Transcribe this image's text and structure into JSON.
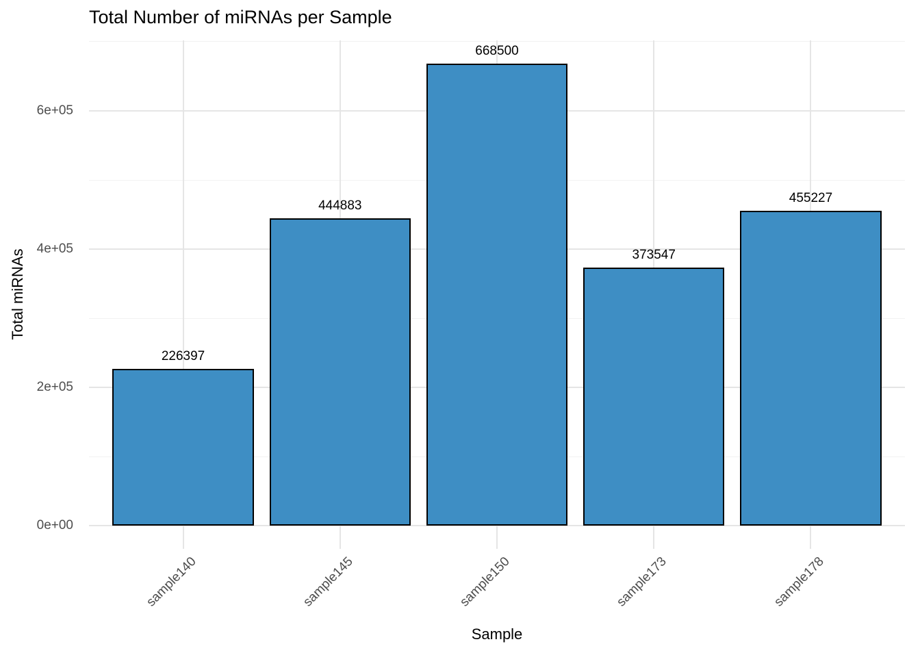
{
  "chart_data": {
    "type": "bar",
    "title": "Total Number of miRNAs per Sample",
    "xlabel": "Sample",
    "ylabel": "Total miRNAs",
    "categories": [
      "sample140",
      "sample145",
      "sample150",
      "sample173",
      "sample178"
    ],
    "values": [
      226397,
      444883,
      668500,
      373547,
      455227
    ],
    "bar_value_labels": [
      "226397",
      "444883",
      "668500",
      "373547",
      "455227"
    ],
    "y_tick_values": [
      0,
      200000,
      400000,
      600000
    ],
    "y_tick_labels": [
      "0e+00",
      "2e+05",
      "4e+05",
      "6e+05"
    ],
    "y_minor_tick_values": [
      100000,
      300000,
      500000,
      700000
    ],
    "ylim": [
      -33425,
      701925
    ],
    "grid": "major and minor horizontal, major vertical at category centers",
    "legend_position": "none",
    "colors": {
      "bar_fill": "#3E8EC4",
      "bar_stroke": "#000000",
      "grid_major": "#E5E5E5",
      "grid_minor": "#F2F2F2",
      "tick_text": "#4D4D4D",
      "title_text": "#000000",
      "background": "#FFFFFF"
    }
  }
}
